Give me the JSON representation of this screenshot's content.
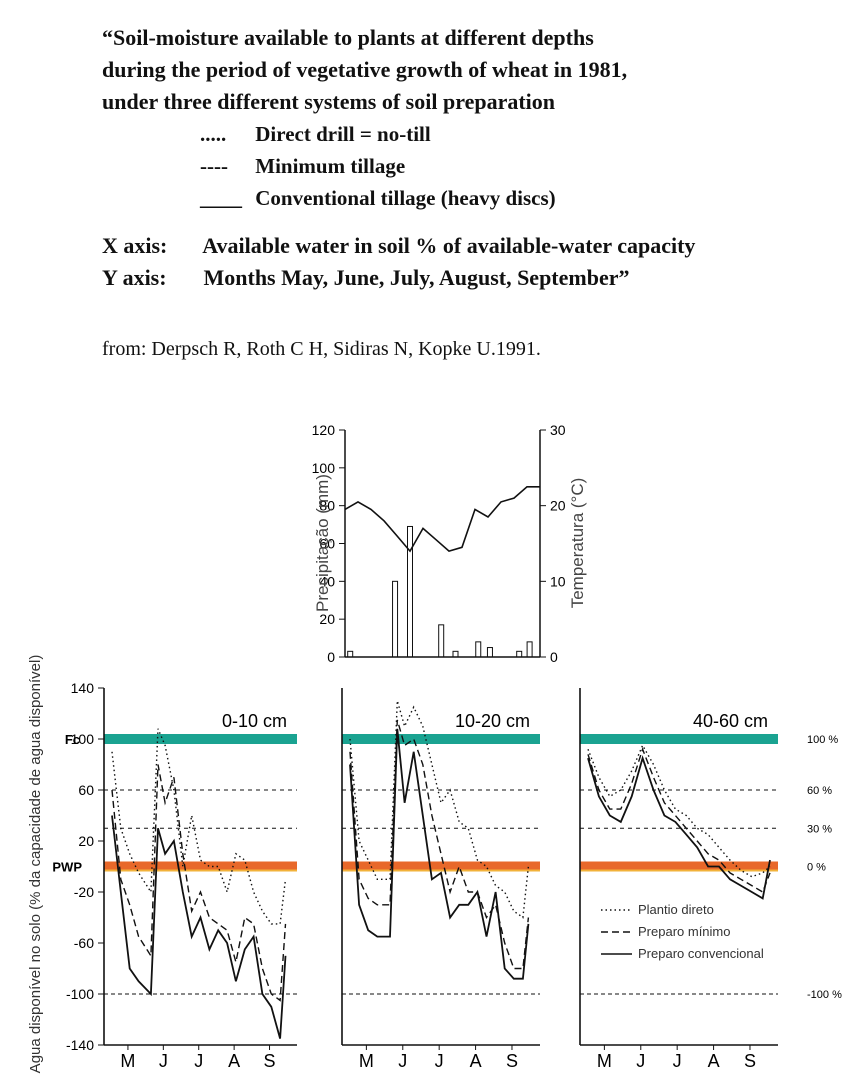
{
  "caption": {
    "line1": "“Soil-moisture available to plants at different depths",
    "line2": "during the period of vegetative growth of wheat in 1981,",
    "line3": "under three different systems of soil preparation",
    "legend": [
      {
        "sym": ".....",
        "label": "Direct drill = no-till"
      },
      {
        "sym": "----",
        "label": "Minimum tillage"
      },
      {
        "sym": "____",
        "label": "Conventional tillage (heavy discs)"
      }
    ],
    "xaxis_key": "X axis:",
    "xaxis_text": "Available water in soil % of available-water capacity",
    "yaxis_key": "Y axis:",
    "yaxis_text": "Months May, June, July, August, September”"
  },
  "source": "from: Derpsch R, Roth C H, Sidiras N, Kopke U.1991.",
  "colors": {
    "fc_band": "#1aa391",
    "wp_band": "#e8682a",
    "wp_band_light": "#f2b23a",
    "ink": "#111111"
  },
  "chart_data": [
    {
      "type": "bar",
      "ylabel": "Precipitação (mm)",
      "y2label": "Temperatura (°C)",
      "ylim": [
        0,
        120
      ],
      "y2lim": [
        0,
        30
      ],
      "yticks": [
        "0",
        "20",
        "40",
        "60",
        "80",
        "100",
        "120"
      ],
      "y2ticks": [
        "0",
        "10",
        "20",
        "30"
      ],
      "xlim": [
        0,
        30
      ],
      "bars": [
        {
          "x": 0.8,
          "value": 3
        },
        {
          "x": 7.7,
          "value": 40
        },
        {
          "x": 10.0,
          "value": 69
        },
        {
          "x": 14.8,
          "value": 17
        },
        {
          "x": 17.0,
          "value": 3
        },
        {
          "x": 20.5,
          "value": 8
        },
        {
          "x": 22.3,
          "value": 5
        },
        {
          "x": 26.8,
          "value": 3
        },
        {
          "x": 28.4,
          "value": 8
        }
      ],
      "temperature": {
        "x": [
          0,
          2,
          4,
          6,
          8,
          10,
          12,
          14,
          16,
          18,
          20,
          22,
          24,
          26,
          28,
          30
        ],
        "y": [
          19.5,
          20.5,
          19.5,
          18,
          16,
          14,
          17,
          15.5,
          14,
          14.5,
          19.5,
          18.5,
          20.5,
          21,
          22.5,
          22.5
        ]
      }
    },
    {
      "type": "line",
      "title": "0-10 cm",
      "ylabel": "Agua disponível no solo (% da capacidade de agua disponível)",
      "yticks": [
        "140",
        "100",
        "60",
        "20",
        "-20",
        "-60",
        "-100",
        "-140"
      ],
      "ylim": [
        -140,
        140
      ],
      "xticks": [
        "M",
        "J",
        "J",
        "A",
        "S"
      ],
      "xlim": [
        0,
        5
      ],
      "labels": {
        "fc": "Fc",
        "wp": "PWP"
      },
      "series": [
        {
          "name": "Plantio direto",
          "style": "dotted",
          "x": [
            0,
            0.25,
            0.5,
            0.75,
            1.1,
            1.3,
            1.5,
            1.75,
            2.0,
            2.25,
            2.5,
            2.75,
            3.0,
            3.25,
            3.5,
            3.75,
            4.0,
            4.25,
            4.5,
            4.75,
            4.9
          ],
          "y": [
            90,
            30,
            10,
            -5,
            -20,
            108,
            95,
            60,
            0,
            40,
            5,
            0,
            0,
            -20,
            10,
            5,
            -20,
            -35,
            -45,
            -45,
            -10
          ]
        },
        {
          "name": "Preparo mínimo",
          "style": "dashed",
          "x": [
            0,
            0.25,
            0.5,
            0.75,
            1.1,
            1.3,
            1.5,
            1.75,
            2.0,
            2.25,
            2.5,
            2.75,
            3.0,
            3.25,
            3.5,
            3.75,
            4.0,
            4.25,
            4.5,
            4.75,
            4.9
          ],
          "y": [
            60,
            -10,
            -30,
            -55,
            -70,
            80,
            50,
            70,
            10,
            -35,
            -20,
            -40,
            -45,
            -50,
            -75,
            -40,
            -45,
            -80,
            -100,
            -105,
            -45
          ]
        },
        {
          "name": "Preparo convencional",
          "style": "solid",
          "x": [
            0,
            0.25,
            0.5,
            0.75,
            1.1,
            1.3,
            1.5,
            1.75,
            2.0,
            2.25,
            2.5,
            2.75,
            3.0,
            3.25,
            3.5,
            3.75,
            4.0,
            4.25,
            4.5,
            4.75,
            4.9
          ],
          "y": [
            40,
            -20,
            -80,
            -90,
            -100,
            30,
            10,
            20,
            -20,
            -55,
            -40,
            -65,
            -50,
            -60,
            -90,
            -65,
            -55,
            -100,
            -110,
            -135,
            -70
          ]
        }
      ]
    },
    {
      "type": "line",
      "title": "10-20 cm",
      "yticks": [
        "140",
        "100",
        "60",
        "20",
        "-20",
        "-60",
        "-100",
        "-140"
      ],
      "ylim": [
        -140,
        140
      ],
      "xticks": [
        "M",
        "J",
        "J",
        "A",
        "S"
      ],
      "xlim": [
        0,
        5
      ],
      "series": [
        {
          "name": "Plantio direto",
          "style": "dotted",
          "x": [
            0,
            0.25,
            0.5,
            0.75,
            1.1,
            1.3,
            1.5,
            1.75,
            2.0,
            2.25,
            2.5,
            2.75,
            3.0,
            3.25,
            3.5,
            3.75,
            4.0,
            4.25,
            4.5,
            4.75,
            4.9
          ],
          "y": [
            100,
            20,
            5,
            -10,
            -10,
            130,
            110,
            125,
            110,
            80,
            50,
            60,
            35,
            30,
            5,
            0,
            -15,
            -20,
            -35,
            -40,
            0
          ]
        },
        {
          "name": "Preparo mínimo",
          "style": "dashed",
          "x": [
            0,
            0.25,
            0.5,
            0.75,
            1.1,
            1.3,
            1.5,
            1.75,
            2.0,
            2.25,
            2.5,
            2.75,
            3.0,
            3.25,
            3.5,
            3.75,
            4.0,
            4.25,
            4.5,
            4.75,
            4.9
          ],
          "y": [
            90,
            -10,
            -25,
            -30,
            -30,
            115,
            95,
            100,
            80,
            40,
            10,
            -20,
            0,
            -20,
            -20,
            -40,
            -30,
            -60,
            -80,
            -80,
            -40
          ]
        },
        {
          "name": "Preparo convencional",
          "style": "solid",
          "x": [
            0,
            0.25,
            0.5,
            0.75,
            1.1,
            1.3,
            1.5,
            1.75,
            2.0,
            2.25,
            2.5,
            2.75,
            3.0,
            3.25,
            3.5,
            3.75,
            4.0,
            4.25,
            4.5,
            4.75,
            4.9
          ],
          "y": [
            80,
            -30,
            -50,
            -55,
            -55,
            108,
            50,
            90,
            40,
            -10,
            -5,
            -40,
            -30,
            -30,
            -20,
            -55,
            -20,
            -80,
            -88,
            -88,
            -45
          ]
        }
      ]
    },
    {
      "type": "line",
      "title": "40-60 cm",
      "xticks": [
        "M",
        "J",
        "J",
        "A",
        "S"
      ],
      "xlim": [
        0,
        5
      ],
      "ylim": [
        -140,
        140
      ],
      "right_ticks": [
        "100 %",
        "60 %",
        "30 %",
        "0 %",
        "-100 %"
      ],
      "series": [
        {
          "name": "Plantio direto",
          "style": "dotted",
          "x": [
            0,
            0.3,
            0.6,
            0.9,
            1.2,
            1.5,
            1.8,
            2.1,
            2.4,
            2.7,
            3.0,
            3.3,
            3.6,
            3.9,
            4.2,
            4.5,
            4.8,
            5.0
          ],
          "y": [
            92,
            70,
            55,
            60,
            75,
            95,
            80,
            60,
            45,
            40,
            30,
            25,
            15,
            5,
            -3,
            -8,
            -5,
            0
          ]
        },
        {
          "name": "Preparo mínimo",
          "style": "dashed",
          "x": [
            0,
            0.3,
            0.6,
            0.9,
            1.2,
            1.5,
            1.8,
            2.1,
            2.4,
            2.7,
            3.0,
            3.3,
            3.6,
            3.9,
            4.2,
            4.5,
            4.8,
            5.0
          ],
          "y": [
            88,
            60,
            45,
            45,
            65,
            92,
            70,
            50,
            40,
            30,
            20,
            10,
            5,
            -5,
            -10,
            -15,
            -20,
            -5
          ]
        },
        {
          "name": "Preparo convencional",
          "style": "solid",
          "x": [
            0,
            0.3,
            0.6,
            0.9,
            1.2,
            1.5,
            1.8,
            2.1,
            2.4,
            2.7,
            3.0,
            3.3,
            3.6,
            3.9,
            4.2,
            4.5,
            4.8,
            5.0
          ],
          "y": [
            85,
            55,
            40,
            35,
            55,
            85,
            60,
            40,
            35,
            25,
            15,
            0,
            0,
            -10,
            -15,
            -20,
            -25,
            5
          ]
        }
      ],
      "legend": [
        "Plantio direto",
        "Preparo mínimo",
        "Preparo convencional"
      ]
    }
  ]
}
